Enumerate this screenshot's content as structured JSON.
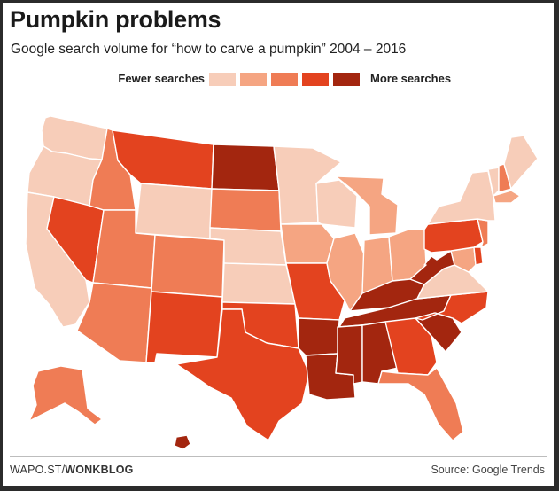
{
  "title": "Pumpkin problems",
  "subtitle": "Google search volume for “how to carve a pumpkin” 2004 – 2016",
  "legend": {
    "low_label": "Fewer searches",
    "high_label": "More searches",
    "colors": [
      "#f7cdb9",
      "#f5a582",
      "#ef7c55",
      "#e3431f",
      "#a3260f"
    ]
  },
  "credit": {
    "prefix": "WAPO.ST/",
    "strong": "WONKBLOG"
  },
  "source": "Source: Google Trends",
  "states": {
    "WA": 1,
    "OR": 1,
    "CA": 1,
    "ID": 3,
    "NV": 4,
    "MT": 4,
    "WY": 1,
    "UT": 3,
    "AZ": 3,
    "CO": 3,
    "NM": 4,
    "ND": 5,
    "SD": 3,
    "NE": 1,
    "KS": 1,
    "OK": 4,
    "TX": 4,
    "MN": 1,
    "IA": 2,
    "MO": 4,
    "AR": 5,
    "LA": 5,
    "WI": 1,
    "IL": 2,
    "MI": 2,
    "IN": 2,
    "OH": 2,
    "KY": 5,
    "TN": 5,
    "MS": 5,
    "AL": 5,
    "GA": 4,
    "FL": 3,
    "SC": 5,
    "NC": 4,
    "VA": 1,
    "WV": 5,
    "PA": 4,
    "NY": 1,
    "ME": 1,
    "VT": 1,
    "NH": 3,
    "MA": 2,
    "NJ": 3,
    "DE": 4,
    "MD": 2,
    "AK": 3,
    "HI": 5
  }
}
